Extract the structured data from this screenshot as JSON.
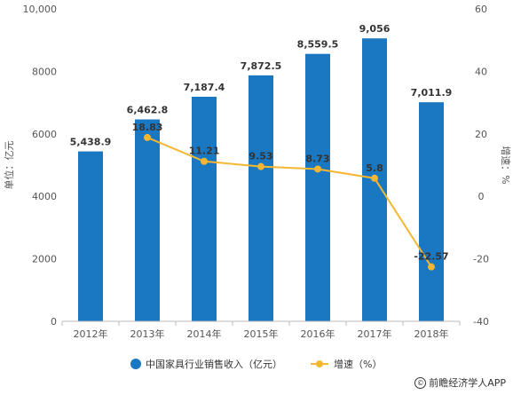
{
  "chart_data": {
    "type": "bar",
    "categories": [
      "2012年",
      "2013年",
      "2014年",
      "2015年",
      "2016年",
      "2017年",
      "2018年"
    ],
    "series": [
      {
        "name": "中国家具行业销售收入（亿元）",
        "type": "bar",
        "axis": "left",
        "color": "#1a78c2",
        "values": [
          5438.9,
          6462.8,
          7187.4,
          7872.5,
          8559.5,
          9056,
          7011.9
        ],
        "labels": [
          "5,438.9",
          "6,462.8",
          "7,187.4",
          "7,872.5",
          "8,559.5",
          "9,056",
          "7,011.9"
        ]
      },
      {
        "name": "增速（%）",
        "type": "line",
        "axis": "right",
        "color": "#f5b631",
        "x": [
          "2013年",
          "2014年",
          "2015年",
          "2016年",
          "2017年",
          "2018年"
        ],
        "values": [
          18.83,
          11.21,
          9.53,
          8.73,
          5.8,
          -22.57
        ],
        "labels": [
          "18.83",
          "11.21",
          "9.53",
          "8.73",
          "5.8",
          "-22.57"
        ]
      }
    ],
    "ylabel": "单位：亿元",
    "y2label": "增速：%",
    "ylim": [
      0,
      10000
    ],
    "y2lim": [
      -40,
      60
    ],
    "yticks": [
      "0",
      "2000",
      "4000",
      "6000",
      "8000",
      "10,000"
    ],
    "y2ticks": [
      "-40",
      "-20",
      "0",
      "20",
      "40",
      "60"
    ],
    "grid": false,
    "legend_position": "bottom"
  },
  "credit": {
    "icon": "copyright-icon",
    "text": "前瞻经济学人APP"
  }
}
